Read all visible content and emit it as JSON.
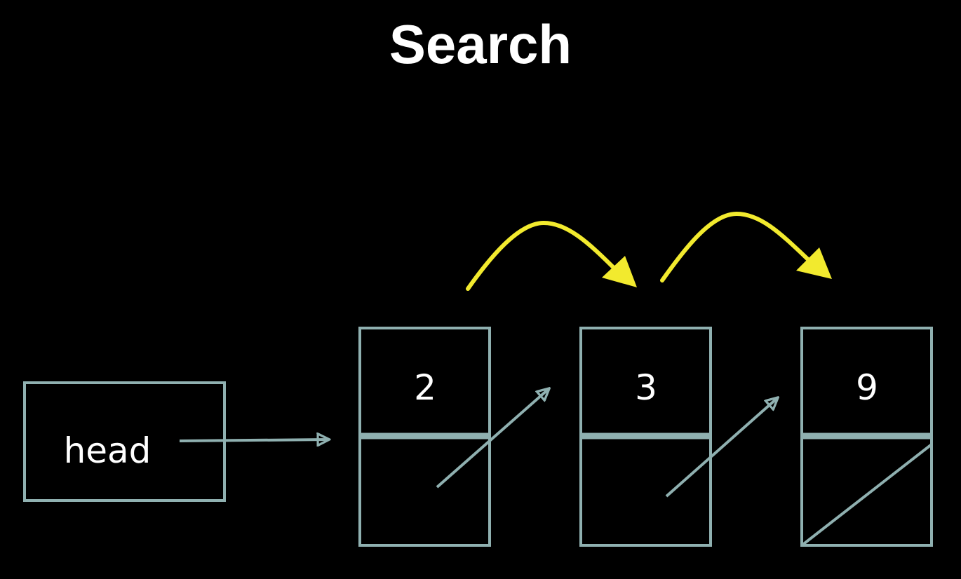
{
  "title": "Search",
  "colors": {
    "background": "#000000",
    "box_stroke": "#8fb0b0",
    "pointer_arrow": "#8fb0b0",
    "traversal_arrow": "#f2ea2e",
    "text": "#ffffff"
  },
  "head": {
    "label": "head"
  },
  "nodes": [
    {
      "value": "2",
      "next": "pointer"
    },
    {
      "value": "3",
      "next": "pointer"
    },
    {
      "value": "9",
      "next": "null"
    }
  ],
  "traversal": [
    {
      "from": 0,
      "to": 1
    },
    {
      "from": 1,
      "to": 2
    }
  ]
}
